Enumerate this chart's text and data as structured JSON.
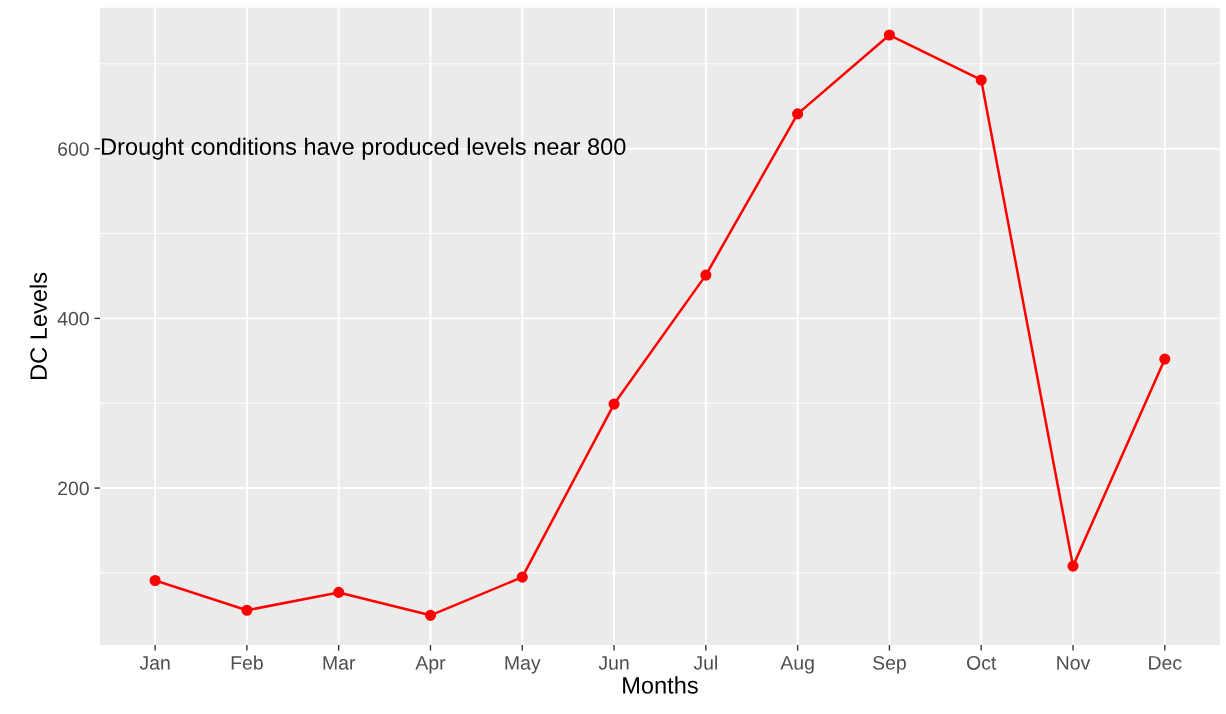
{
  "chart_data": {
    "type": "line",
    "xlabel": "Months",
    "ylabel": "DC Levels",
    "categories": [
      "Jan",
      "Feb",
      "Mar",
      "Apr",
      "May",
      "Jun",
      "Jul",
      "Aug",
      "Sep",
      "Oct",
      "Nov",
      "Dec"
    ],
    "series": [
      {
        "color": "#ff0000",
        "values": [
          91,
          56,
          77,
          50,
          95,
          299,
          451,
          641,
          734,
          681,
          108,
          352
        ]
      }
    ],
    "ylim": [
      15,
      766
    ],
    "yticks": [
      200,
      400,
      600
    ],
    "grid": true,
    "marker": "circle",
    "line_style": "solid",
    "annotations": [
      "Drought conditions have produced levels near 800"
    ]
  }
}
